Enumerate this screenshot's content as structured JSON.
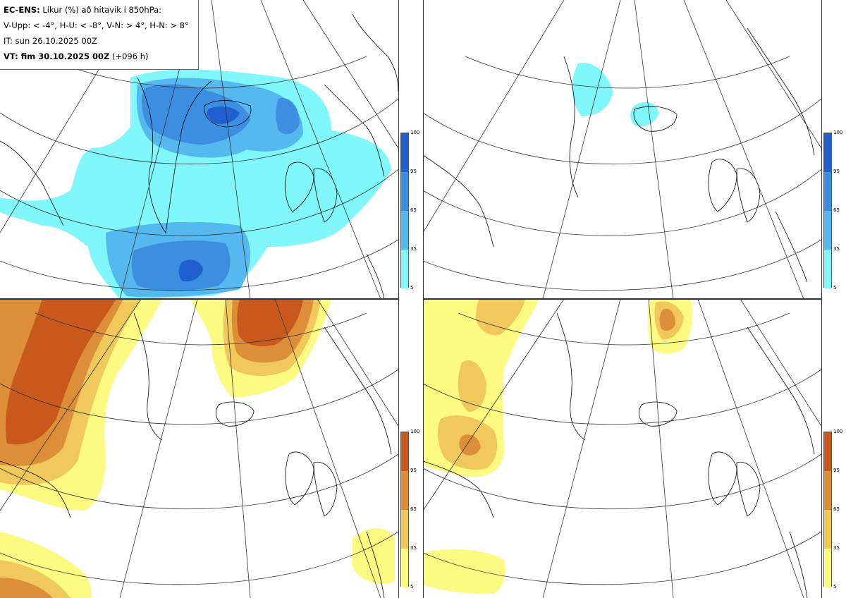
{
  "header": {
    "model_label": "EC-ENS:",
    "title": "Líkur (%) að hitavik í 850hPa:",
    "thresholds": "V-Upp: < -4°, H-U: < -8°, V-N: > 4°, H-N: > 8°",
    "initial_time": "IT: sun 26.10.2025 00Z",
    "valid_label": "VT: fim 30.10.2025 00Z",
    "lead_time": "(+096 h)"
  },
  "panels": [
    {
      "id": "upper-left",
      "theme": "cold"
    },
    {
      "id": "upper-right",
      "theme": "cold"
    },
    {
      "id": "lower-left",
      "theme": "warm"
    },
    {
      "id": "lower-right",
      "theme": "warm"
    }
  ],
  "colorbar_cold": {
    "ticks": [
      "100",
      "95",
      "65",
      "35",
      "5"
    ],
    "colors": [
      "#1f5fcf",
      "#3c8fe0",
      "#55b9ef",
      "#7ff7fb"
    ]
  },
  "colorbar_warm": {
    "ticks": [
      "100",
      "95",
      "65",
      "35",
      "5"
    ],
    "colors": [
      "#c8581c",
      "#dd8e38",
      "#f1c85b",
      "#fdfa82"
    ]
  },
  "colors": {
    "cold_5": "#7ff7fb",
    "cold_35": "#55b9ef",
    "cold_65": "#3c8fe0",
    "cold_95": "#1f5fcf",
    "warm_5": "#fdfa82",
    "warm_35": "#f1c85b",
    "warm_65": "#dd8e38",
    "warm_95": "#c8581c",
    "coast": "#000000",
    "grid": "#333333"
  }
}
